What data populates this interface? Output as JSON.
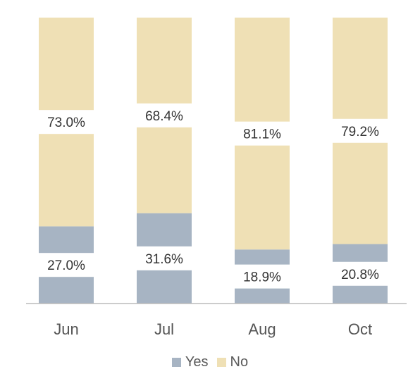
{
  "colors": {
    "yes": "#a7b4c3",
    "no": "#efe0b5",
    "axis": "#bbbbbb",
    "text": "#333333",
    "tick": "#555555"
  },
  "legend": {
    "yes_label": "Yes",
    "no_label": "No"
  },
  "chart_data": {
    "type": "bar",
    "stacked": true,
    "normalized_percent": true,
    "categories": [
      "Jun",
      "Jul",
      "Aug",
      "Oct"
    ],
    "series": [
      {
        "name": "Yes",
        "values": [
          27.0,
          31.6,
          18.9,
          20.8
        ],
        "labels": [
          "27.0%",
          "31.6%",
          "18.9%",
          "20.8%"
        ]
      },
      {
        "name": "No",
        "values": [
          73.0,
          68.4,
          81.1,
          79.2
        ],
        "labels": [
          "73.0%",
          "68.4%",
          "81.1%",
          "79.2%"
        ]
      }
    ],
    "ylim": [
      0,
      100
    ],
    "legend_position": "bottom",
    "grid": false
  }
}
